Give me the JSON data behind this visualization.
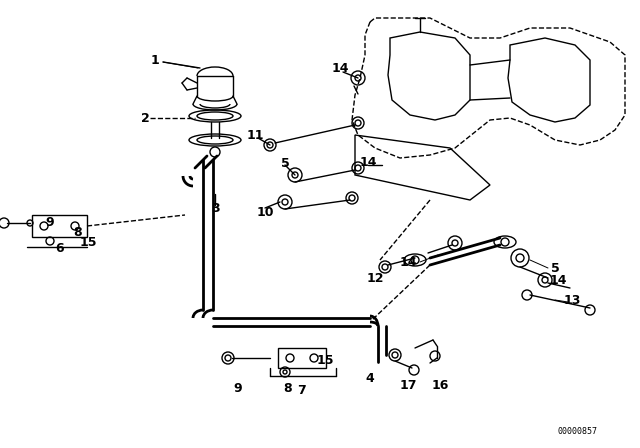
{
  "background_color": "#ffffff",
  "watermark": "00000857",
  "lw": 1.0,
  "pipe_lw": 2.0
}
